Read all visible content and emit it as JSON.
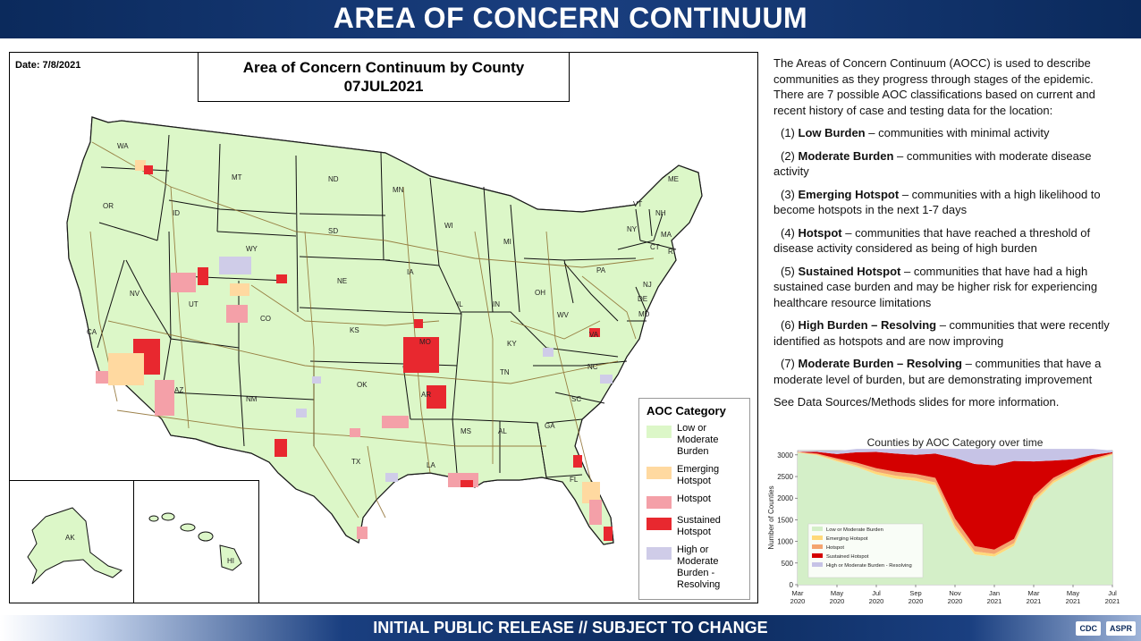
{
  "header": {
    "title": "AREA OF CONCERN CONTINUUM"
  },
  "footer": {
    "text": "INITIAL PUBLIC RELEASE // SUBJECT TO CHANGE",
    "logos": [
      "CDC",
      "ASPR"
    ]
  },
  "map": {
    "date": "Date: 7/8/2021",
    "title_line1": "Area of Concern Continuum by County",
    "title_line2": "07JUL2021",
    "state_labels": [
      "WA",
      "OR",
      "CA",
      "NV",
      "ID",
      "MT",
      "WY",
      "UT",
      "AZ",
      "CO",
      "NM",
      "ND",
      "SD",
      "NE",
      "KS",
      "OK",
      "TX",
      "MN",
      "IA",
      "MO",
      "AR",
      "LA",
      "WI",
      "IL",
      "MI",
      "IN",
      "OH",
      "KY",
      "TN",
      "MS",
      "AL",
      "GA",
      "FL",
      "SC",
      "NC",
      "VA",
      "WV",
      "PA",
      "NY",
      "VT",
      "NH",
      "ME",
      "MA",
      "CT",
      "RI",
      "NJ",
      "DE",
      "MD",
      "AK",
      "HI"
    ],
    "colors": {
      "low": "#dcf7c8",
      "emerging": "#ffd9a0",
      "hotspot": "#f4a0a8",
      "sustained": "#e8282f",
      "resolving": "#cfcce8",
      "border": "#1a1a1a",
      "road": "#8b6b2b"
    },
    "legend": {
      "title": "AOC Category",
      "items": [
        {
          "label": "Low or Moderate Burden",
          "color": "#dcf7c8"
        },
        {
          "label": "Emerging Hotspot",
          "color": "#ffd9a0"
        },
        {
          "label": "Hotspot",
          "color": "#f4a0a8"
        },
        {
          "label": "Sustained Hotspot",
          "color": "#e8282f"
        },
        {
          "label": "High or Moderate Burden - Resolving",
          "color": "#cfcce8"
        }
      ]
    }
  },
  "description": {
    "intro": "The Areas of Concern Continuum (AOCC) is used to describe communities as they progress through stages of the epidemic. There are 7 possible AOC classifications based on current and recent history of case and testing data for the location:",
    "items": [
      {
        "num": "(1)",
        "term": "Low Burden",
        "desc": "– communities with minimal activity"
      },
      {
        "num": "(2)",
        "term": "Moderate Burden",
        "desc": "– communities with moderate disease activity"
      },
      {
        "num": "(3)",
        "term": "Emerging Hotspot",
        "desc": "– communities with a high likelihood to become hotspots in the next 1-7 days"
      },
      {
        "num": "(4)",
        "term": "Hotspot",
        "desc": "– communities that have reached a threshold of disease activity considered as being of high burden"
      },
      {
        "num": "(5)",
        "term": "Sustained Hotspot",
        "desc": "– communities that have had a high sustained case burden and may be higher risk for experiencing healthcare resource limitations"
      },
      {
        "num": "(6)",
        "term": "High Burden – Resolving",
        "desc": "– communities that were recently identified as hotspots and are now improving"
      },
      {
        "num": "(7)",
        "term": "Moderate Burden – Resolving",
        "desc": "– communities that have a moderate level of burden, but are demonstrating improvement"
      }
    ],
    "footnote": "See Data Sources/Methods slides for more information."
  },
  "chart_data": {
    "type": "area",
    "title": "Counties by AOC Category over time",
    "ylabel": "Number of Counties",
    "xlabel": "",
    "ylim": [
      0,
      3100
    ],
    "yticks": [
      0,
      500,
      1000,
      1500,
      2000,
      2500,
      3000
    ],
    "x_ticks": [
      "Mar 2020",
      "May 2020",
      "Jul 2020",
      "Sep 2020",
      "Nov 2020",
      "Jan 2021",
      "Mar 2021",
      "May 2021",
      "Jul 2021"
    ],
    "x": [
      "2020-03",
      "2020-04",
      "2020-05",
      "2020-06",
      "2020-07",
      "2020-08",
      "2020-09",
      "2020-10",
      "2020-11",
      "2020-12",
      "2021-01",
      "2021-02",
      "2021-03",
      "2021-04",
      "2021-05",
      "2021-06",
      "2021-07"
    ],
    "series": [
      {
        "name": "Low or Moderate Burden",
        "color": "#d4efc8",
        "values": [
          3050,
          2990,
          2850,
          2720,
          2550,
          2450,
          2400,
          2300,
          1300,
          700,
          650,
          900,
          1900,
          2350,
          2600,
          2850,
          3000
        ]
      },
      {
        "name": "Emerging Hotspot",
        "color": "#ffd97a",
        "values": [
          10,
          20,
          30,
          40,
          60,
          70,
          70,
          60,
          80,
          70,
          60,
          60,
          60,
          50,
          40,
          30,
          20
        ]
      },
      {
        "name": "Hotspot",
        "color": "#f4a470",
        "values": [
          10,
          20,
          40,
          60,
          80,
          90,
          90,
          110,
          150,
          120,
          100,
          100,
          90,
          70,
          60,
          40,
          20
        ]
      },
      {
        "name": "Sustained Hotspot",
        "color": "#d40000",
        "values": [
          0,
          40,
          100,
          240,
          380,
          420,
          440,
          560,
          1400,
          1900,
          1950,
          1800,
          800,
          400,
          200,
          80,
          20
        ]
      },
      {
        "name": "High or Moderate Burden - Resolving",
        "color": "#c6c3e6",
        "values": [
          0,
          20,
          70,
          80,
          70,
          110,
          140,
          110,
          210,
          350,
          380,
          280,
          290,
          270,
          240,
          140,
          40
        ]
      }
    ],
    "legend_position": "lower-left"
  }
}
